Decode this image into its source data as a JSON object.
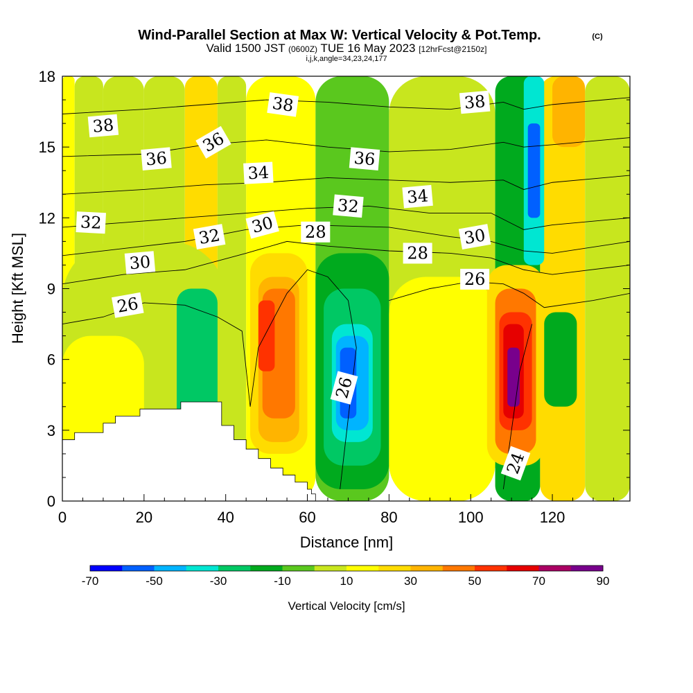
{
  "title": {
    "main": "Wind-Parallel Section at Max W: Vertical Velocity & Pot.Temp.",
    "copyright": "(C)",
    "valid_prefix": "Valid 1500 JST",
    "valid_utc": "(0600Z)",
    "valid_date": "TUE 16 May 2023",
    "forecast": "[12hrFcst@2150z]",
    "indices": "i,j,k,angle=34,23,24,177"
  },
  "chart_data": {
    "type": "contour",
    "xlabel": "Distance [nm]",
    "ylabel": "Height [Kft MSL]",
    "xlim": [
      0,
      139
    ],
    "ylim": [
      0,
      18
    ],
    "xticks": [
      0,
      20,
      40,
      60,
      80,
      100,
      120
    ],
    "xtick_labels": [
      "0",
      "20",
      "40",
      "60",
      "80",
      "100",
      "120"
    ],
    "yticks": [
      0,
      3,
      6,
      9,
      12,
      15,
      18
    ],
    "ytick_labels": [
      "0",
      "3",
      "6",
      "9",
      "12",
      "15",
      "18"
    ],
    "colorbar": {
      "label": "Vertical Velocity [cm/s]",
      "boundaries": [
        -70,
        -60,
        -50,
        -40,
        -30,
        -20,
        -10,
        0,
        10,
        20,
        30,
        40,
        50,
        60,
        70,
        80,
        90
      ],
      "tick_values": [
        -70,
        -50,
        -30,
        -10,
        10,
        30,
        50,
        70,
        90
      ],
      "tick_labels": [
        "-70",
        "-50",
        "-30",
        "-10",
        "10",
        "30",
        "50",
        "70",
        "90"
      ],
      "colors": [
        "#0000ff",
        "#0060ff",
        "#00b4ff",
        "#00e6d2",
        "#00c864",
        "#00aa1e",
        "#5ac81e",
        "#c8e61e",
        "#ffff00",
        "#ffdc00",
        "#ffb400",
        "#ff7800",
        "#ff3200",
        "#e60000",
        "#aa0064",
        "#78008c"
      ]
    },
    "vertical_velocity_cells": [
      {
        "x": [
          0,
          3
        ],
        "y": [
          0,
          18
        ],
        "value": 12
      },
      {
        "x": [
          3,
          10
        ],
        "y": [
          0,
          18
        ],
        "value": 2
      },
      {
        "x": [
          10,
          20
        ],
        "y": [
          0,
          18
        ],
        "value": 8
      },
      {
        "x": [
          20,
          30
        ],
        "y": [
          0,
          18
        ],
        "value": 2
      },
      {
        "x": [
          30,
          38
        ],
        "y": [
          0,
          18
        ],
        "value": 22
      },
      {
        "x": [
          38,
          45
        ],
        "y": [
          0,
          18
        ],
        "value": 4
      },
      {
        "x": [
          45,
          62
        ],
        "y": [
          0,
          18
        ],
        "value": 12
      },
      {
        "x": [
          62,
          80
        ],
        "y": [
          0,
          18
        ],
        "value": -5
      },
      {
        "x": [
          80,
          106
        ],
        "y": [
          0,
          18
        ],
        "value": 5
      },
      {
        "x": [
          106,
          117
        ],
        "y": [
          0,
          18
        ],
        "value": -15
      },
      {
        "x": [
          117,
          128
        ],
        "y": [
          0,
          18
        ],
        "value": 25
      },
      {
        "x": [
          128,
          139
        ],
        "y": [
          0,
          18
        ],
        "value": 2
      },
      {
        "x": [
          0,
          40
        ],
        "y": [
          0,
          11
        ],
        "value": 4
      },
      {
        "x": [
          0,
          20
        ],
        "y": [
          0,
          7
        ],
        "value": 12
      },
      {
        "x": [
          28,
          38
        ],
        "y": [
          2,
          9
        ],
        "value": -25
      },
      {
        "x": [
          46,
          60
        ],
        "y": [
          2,
          10.5
        ],
        "value": 22
      },
      {
        "x": [
          48,
          58
        ],
        "y": [
          2.5,
          9.5
        ],
        "value": 35
      },
      {
        "x": [
          49,
          57
        ],
        "y": [
          3.5,
          9
        ],
        "value": 45
      },
      {
        "x": [
          48,
          52
        ],
        "y": [
          5.5,
          8.5
        ],
        "value": 55
      },
      {
        "x": [
          62,
          80
        ],
        "y": [
          0.5,
          10.5
        ],
        "value": -12
      },
      {
        "x": [
          64,
          78
        ],
        "y": [
          1.5,
          9
        ],
        "value": -25
      },
      {
        "x": [
          66,
          76
        ],
        "y": [
          2.5,
          7.5
        ],
        "value": -35
      },
      {
        "x": [
          67,
          75
        ],
        "y": [
          3,
          7
        ],
        "value": -45
      },
      {
        "x": [
          68,
          72
        ],
        "y": [
          3.5,
          6.5
        ],
        "value": -55
      },
      {
        "x": [
          80,
          106
        ],
        "y": [
          0,
          9.5
        ],
        "value": 12
      },
      {
        "x": [
          104,
          118
        ],
        "y": [
          1.5,
          10
        ],
        "value": 22
      },
      {
        "x": [
          106,
          116
        ],
        "y": [
          2,
          9
        ],
        "value": 40
      },
      {
        "x": [
          107,
          115
        ],
        "y": [
          3,
          8
        ],
        "value": 55
      },
      {
        "x": [
          108,
          113
        ],
        "y": [
          3.5,
          7.5
        ],
        "value": 65
      },
      {
        "x": [
          109,
          112
        ],
        "y": [
          4,
          6.5
        ],
        "value": 85
      },
      {
        "x": [
          113,
          118
        ],
        "y": [
          10,
          18
        ],
        "value": -35
      },
      {
        "x": [
          114,
          117
        ],
        "y": [
          12,
          16
        ],
        "value": -55
      },
      {
        "x": [
          120,
          128
        ],
        "y": [
          15,
          18
        ],
        "value": 35
      },
      {
        "x": [
          118,
          126
        ],
        "y": [
          4,
          8
        ],
        "value": -20
      }
    ],
    "terrain": [
      [
        0,
        2.6
      ],
      [
        3,
        2.6
      ],
      [
        3,
        2.9
      ],
      [
        10,
        2.9
      ],
      [
        10,
        3.3
      ],
      [
        13,
        3.3
      ],
      [
        13,
        3.6
      ],
      [
        19,
        3.6
      ],
      [
        19,
        3.9
      ],
      [
        29,
        3.9
      ],
      [
        29,
        4.2
      ],
      [
        39,
        4.2
      ],
      [
        39,
        3.2
      ],
      [
        42,
        3.2
      ],
      [
        42,
        2.6
      ],
      [
        45,
        2.6
      ],
      [
        45,
        2.2
      ],
      [
        48,
        2.2
      ],
      [
        48,
        1.8
      ],
      [
        51,
        1.8
      ],
      [
        51,
        1.4
      ],
      [
        54,
        1.4
      ],
      [
        54,
        1.1
      ],
      [
        57,
        1.1
      ],
      [
        57,
        0.8
      ],
      [
        60,
        0.8
      ],
      [
        60,
        0.5
      ],
      [
        61,
        0.5
      ],
      [
        61,
        0.3
      ],
      [
        62,
        0.3
      ],
      [
        62,
        0
      ],
      [
        0,
        0
      ]
    ],
    "potential_temperature_contours": [
      {
        "level": 24,
        "points": [
          [
            108,
            0.5
          ],
          [
            110,
            3
          ],
          [
            112,
            5.5
          ],
          [
            115,
            7.5
          ]
        ]
      },
      {
        "level": 26,
        "points": [
          [
            0,
            7.5
          ],
          [
            10,
            7.8
          ],
          [
            20,
            8.4
          ],
          [
            30,
            8.3
          ],
          [
            38,
            7.8
          ],
          [
            44,
            7.2
          ],
          [
            46,
            4
          ],
          [
            48,
            6.5
          ],
          [
            55,
            8.8
          ],
          [
            60,
            9.8
          ],
          [
            65,
            9.5
          ],
          [
            70,
            8.5
          ],
          [
            72,
            6.5
          ],
          [
            70,
            3.5
          ],
          [
            68,
            0.5
          ]
        ]
      },
      {
        "level": 26,
        "points": [
          [
            80,
            8.5
          ],
          [
            90,
            9
          ],
          [
            100,
            9.3
          ],
          [
            108,
            9.2
          ],
          [
            113,
            8.8
          ],
          [
            118,
            8.2
          ],
          [
            130,
            8.5
          ],
          [
            139,
            8.8
          ]
        ]
      },
      {
        "level": 28,
        "points": [
          [
            0,
            9.2
          ],
          [
            15,
            9.6
          ],
          [
            30,
            9.8
          ],
          [
            45,
            10.5
          ],
          [
            55,
            11
          ],
          [
            65,
            10.8
          ],
          [
            80,
            10.6
          ],
          [
            95,
            10.5
          ],
          [
            105,
            10.3
          ],
          [
            113,
            9.8
          ],
          [
            120,
            9.6
          ],
          [
            139,
            10
          ]
        ]
      },
      {
        "level": 30,
        "points": [
          [
            0,
            10.4
          ],
          [
            15,
            10.7
          ],
          [
            30,
            11
          ],
          [
            45,
            11.5
          ],
          [
            60,
            11.7
          ],
          [
            80,
            11.6
          ],
          [
            95,
            11.2
          ],
          [
            105,
            11
          ],
          [
            113,
            10.6
          ],
          [
            120,
            10.5
          ],
          [
            139,
            11
          ]
        ]
      },
      {
        "level": 32,
        "points": [
          [
            0,
            11.6
          ],
          [
            15,
            11.8
          ],
          [
            30,
            12
          ],
          [
            45,
            12.2
          ],
          [
            60,
            12.4
          ],
          [
            75,
            12.5
          ],
          [
            90,
            12.2
          ],
          [
            105,
            12.2
          ],
          [
            113,
            11.5
          ],
          [
            120,
            11.7
          ],
          [
            139,
            12
          ]
        ]
      },
      {
        "level": 34,
        "points": [
          [
            0,
            13
          ],
          [
            20,
            13.2
          ],
          [
            35,
            13.4
          ],
          [
            50,
            13.5
          ],
          [
            65,
            13.7
          ],
          [
            80,
            13.6
          ],
          [
            95,
            13.5
          ],
          [
            108,
            13.6
          ],
          [
            113,
            13.2
          ],
          [
            120,
            13.5
          ],
          [
            139,
            13.8
          ]
        ]
      },
      {
        "level": 36,
        "points": [
          [
            0,
            14.6
          ],
          [
            20,
            14.7
          ],
          [
            35,
            15.1
          ],
          [
            50,
            15.3
          ],
          [
            65,
            15
          ],
          [
            80,
            14.8
          ],
          [
            95,
            14.9
          ],
          [
            108,
            15.2
          ],
          [
            113,
            15
          ],
          [
            120,
            15.1
          ],
          [
            139,
            15.4
          ]
        ]
      },
      {
        "level": 38,
        "points": [
          [
            0,
            16.4
          ],
          [
            20,
            16.6
          ],
          [
            35,
            16.8
          ],
          [
            50,
            17
          ],
          [
            65,
            16.9
          ],
          [
            80,
            16.7
          ],
          [
            95,
            16.6
          ],
          [
            108,
            16.9
          ],
          [
            113,
            16.6
          ],
          [
            120,
            16.8
          ],
          [
            139,
            17.1
          ]
        ]
      }
    ],
    "contour_labels": [
      {
        "text": "38",
        "x": 10,
        "y": 15.9,
        "angle": -5
      },
      {
        "text": "36",
        "x": 23,
        "y": 14.5,
        "angle": -5
      },
      {
        "text": "36",
        "x": 37,
        "y": 15.2,
        "angle": -30
      },
      {
        "text": "38",
        "x": 54,
        "y": 16.8,
        "angle": 8
      },
      {
        "text": "34",
        "x": 48,
        "y": 13.9,
        "angle": -3
      },
      {
        "text": "36",
        "x": 74,
        "y": 14.5,
        "angle": 5
      },
      {
        "text": "38",
        "x": 101,
        "y": 16.9,
        "angle": -5
      },
      {
        "text": "32",
        "x": 7,
        "y": 11.8,
        "angle": 3
      },
      {
        "text": "32",
        "x": 70,
        "y": 12.5,
        "angle": 5
      },
      {
        "text": "34",
        "x": 87,
        "y": 12.9,
        "angle": -5
      },
      {
        "text": "32",
        "x": 36,
        "y": 11.2,
        "angle": -10
      },
      {
        "text": "30",
        "x": 49,
        "y": 11.7,
        "angle": -15
      },
      {
        "text": "28",
        "x": 62,
        "y": 11.4,
        "angle": 0
      },
      {
        "text": "28",
        "x": 87,
        "y": 10.5,
        "angle": 0
      },
      {
        "text": "30",
        "x": 101,
        "y": 11.2,
        "angle": -10
      },
      {
        "text": "30",
        "x": 19,
        "y": 10.1,
        "angle": -5
      },
      {
        "text": "26",
        "x": 16,
        "y": 8.3,
        "angle": -10
      },
      {
        "text": "26",
        "x": 101,
        "y": 9.4,
        "angle": 0
      },
      {
        "text": "26",
        "x": 69,
        "y": 4.8,
        "angle": -75
      },
      {
        "text": "24",
        "x": 111,
        "y": 1.6,
        "angle": -70
      }
    ]
  }
}
